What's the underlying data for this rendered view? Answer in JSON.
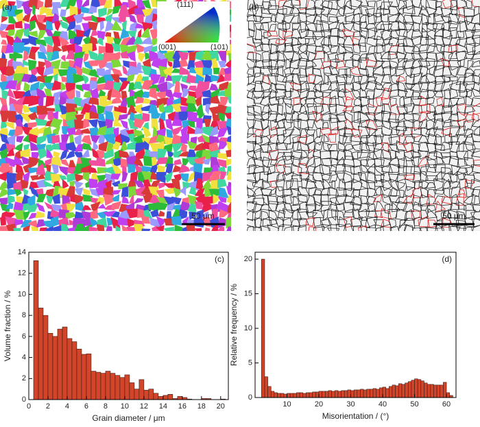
{
  "panels": [
    {
      "label": "(a)",
      "scale_bar": "50 μm",
      "legend": [
        "(111)",
        "(001)",
        "(101)"
      ]
    },
    {
      "label": "(b)",
      "scale_bar": "50 μm"
    }
  ],
  "chart_data": [
    {
      "type": "histogram",
      "annotation": "(c)",
      "xlabel": "Grain diameter / μm",
      "ylabel": "Volume fraction / %",
      "color": "#d2452b",
      "bins": [
        0.5,
        1,
        1.5,
        2,
        2.5,
        3,
        3.5,
        4,
        4.5,
        5,
        5.5,
        6,
        6.5,
        7,
        7.5,
        8,
        8.5,
        9,
        9.5,
        10,
        10.5,
        11,
        11.5,
        12,
        12.5,
        13,
        13.5,
        14,
        14.5,
        15,
        15.5,
        16,
        16.5,
        17,
        17.5,
        18,
        18.5,
        19,
        19.5,
        20,
        20.5
      ],
      "values": [
        13.2,
        8.7,
        8.0,
        6.3,
        6.0,
        6.7,
        6.9,
        5.8,
        5.5,
        4.8,
        4.3,
        4.35,
        2.7,
        2.6,
        2.5,
        2.7,
        2.5,
        2.3,
        2.1,
        2.35,
        1.6,
        1.0,
        1.9,
        0.9,
        1.0,
        0.6,
        0.3,
        0.4,
        0.5,
        0.1,
        0.3,
        0.2,
        0.05,
        0,
        0,
        0.1,
        0.1,
        0,
        0,
        0.05
      ],
      "xlim": [
        0,
        20.8
      ],
      "xticks": [
        0,
        2,
        4,
        6,
        8,
        10,
        12,
        14,
        16,
        18,
        20
      ],
      "ylim": [
        0,
        14
      ],
      "yticks": [
        0,
        2,
        4,
        6,
        8,
        10,
        12,
        14
      ]
    },
    {
      "type": "histogram",
      "annotation": "(d)",
      "xlabel": "Misorientation / (°)",
      "ylabel": "Relative frequency / %",
      "color": "#d2452b",
      "bins": [
        2,
        3,
        4,
        5,
        6,
        7,
        8,
        9,
        10,
        11,
        12,
        13,
        14,
        15,
        16,
        17,
        18,
        19,
        20,
        21,
        22,
        23,
        24,
        25,
        26,
        27,
        28,
        29,
        30,
        31,
        32,
        33,
        34,
        35,
        36,
        37,
        38,
        39,
        40,
        41,
        42,
        43,
        44,
        45,
        46,
        47,
        48,
        49,
        50,
        51,
        52,
        53,
        54,
        55,
        56,
        57,
        58,
        59,
        60,
        61,
        62
      ],
      "values": [
        20,
        3.0,
        1.6,
        0.9,
        0.7,
        0.6,
        0.6,
        0.5,
        0.6,
        0.6,
        0.6,
        0.7,
        0.7,
        0.6,
        0.7,
        0.7,
        0.8,
        0.8,
        0.9,
        0.9,
        0.9,
        1.0,
        0.9,
        1.0,
        0.9,
        1.0,
        1.0,
        1.1,
        1.0,
        1.1,
        1.1,
        1.2,
        1.1,
        1.2,
        1.2,
        1.3,
        1.2,
        1.4,
        1.5,
        1.3,
        1.6,
        1.8,
        1.7,
        2.0,
        1.9,
        2.1,
        2.3,
        2.5,
        2.7,
        2.6,
        2.4,
        2.1,
        1.9,
        1.9,
        1.8,
        1.8,
        1.8,
        2.2,
        0.7,
        0.3
      ],
      "xlim": [
        0,
        63
      ],
      "xticks": [
        10,
        20,
        30,
        40,
        50,
        60
      ],
      "ylim": [
        0,
        21
      ],
      "yticks": [
        0,
        5,
        10,
        15,
        20
      ]
    }
  ]
}
